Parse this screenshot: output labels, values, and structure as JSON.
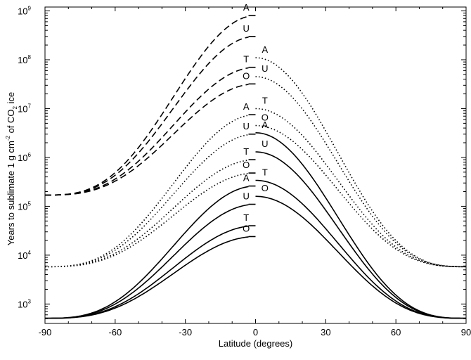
{
  "chart_data": {
    "type": "line",
    "title": "",
    "xlabel": "Latitude (degrees)",
    "ylabel": {
      "pre": "Years to sublimate 1 g cm",
      "sup": "-2",
      "mid": " of CO",
      "sub": "2",
      "post": " ice"
    },
    "xlim": [
      -90,
      90
    ],
    "ylim": [
      400,
      1200000000
    ],
    "yscale": "log",
    "grid": false,
    "x_ticks": [
      -90,
      -60,
      -30,
      0,
      30,
      60,
      90
    ],
    "x_tick_labels": [
      "-90",
      "-60",
      "-30",
      "0",
      "30",
      "60",
      "90"
    ],
    "y_ticks": [
      {
        "value": 1000,
        "base": "10",
        "exp": "3"
      },
      {
        "value": 10000,
        "base": "10",
        "exp": "4"
      },
      {
        "value": 100000,
        "base": "10",
        "exp": "5"
      },
      {
        "value": 1000000,
        "base": "10",
        "exp": "6"
      },
      {
        "value": 10000000,
        "base": "10",
        "exp": "7"
      },
      {
        "value": 100000000,
        "base": "10",
        "exp": "8"
      },
      {
        "value": 1000000000,
        "base": "10",
        "exp": "9"
      }
    ],
    "series": [
      {
        "label": "A",
        "side": "south",
        "style": "dashed",
        "edge": 170000,
        "center": 800000000
      },
      {
        "label": "U",
        "side": "south",
        "style": "dashed",
        "edge": 170000,
        "center": 300000000
      },
      {
        "label": "T",
        "side": "south",
        "style": "dashed",
        "edge": 170000,
        "center": 70000000
      },
      {
        "label": "O",
        "side": "south",
        "style": "dashed",
        "edge": 170000,
        "center": 32000000
      },
      {
        "label": "A",
        "side": "north",
        "style": "dotted",
        "edge": 5800,
        "center": 110000000
      },
      {
        "label": "U",
        "side": "north",
        "style": "dotted",
        "edge": 5800,
        "center": 45000000
      },
      {
        "label": "T",
        "side": "north",
        "style": "dotted",
        "edge": 5800,
        "center": 10000000
      },
      {
        "label": "O",
        "side": "north",
        "style": "dotted",
        "edge": 5800,
        "center": 4500000
      },
      {
        "label": "A",
        "side": "south",
        "style": "dotted",
        "edge": 5800,
        "center": 7500000
      },
      {
        "label": "U",
        "side": "south",
        "style": "dotted",
        "edge": 5800,
        "center": 3000000
      },
      {
        "label": "T",
        "side": "south",
        "style": "dotted",
        "edge": 5800,
        "center": 900000
      },
      {
        "label": "O",
        "side": "south",
        "style": "dotted",
        "edge": 5800,
        "center": 480000
      },
      {
        "label": "A",
        "side": "north",
        "style": "solid",
        "edge": 510,
        "center": 3200000
      },
      {
        "label": "U",
        "side": "north",
        "style": "solid",
        "edge": 510,
        "center": 1300000
      },
      {
        "label": "T",
        "side": "north",
        "style": "solid",
        "edge": 510,
        "center": 340000
      },
      {
        "label": "O",
        "side": "north",
        "style": "solid",
        "edge": 510,
        "center": 160000
      },
      {
        "label": "A",
        "side": "south",
        "style": "solid",
        "edge": 510,
        "center": 260000
      },
      {
        "label": "U",
        "side": "south",
        "style": "solid",
        "edge": 510,
        "center": 110000
      },
      {
        "label": "T",
        "side": "south",
        "style": "solid",
        "edge": 510,
        "center": 40000
      },
      {
        "label": "O",
        "side": "south",
        "style": "solid",
        "edge": 510,
        "center": 24000
      }
    ]
  }
}
